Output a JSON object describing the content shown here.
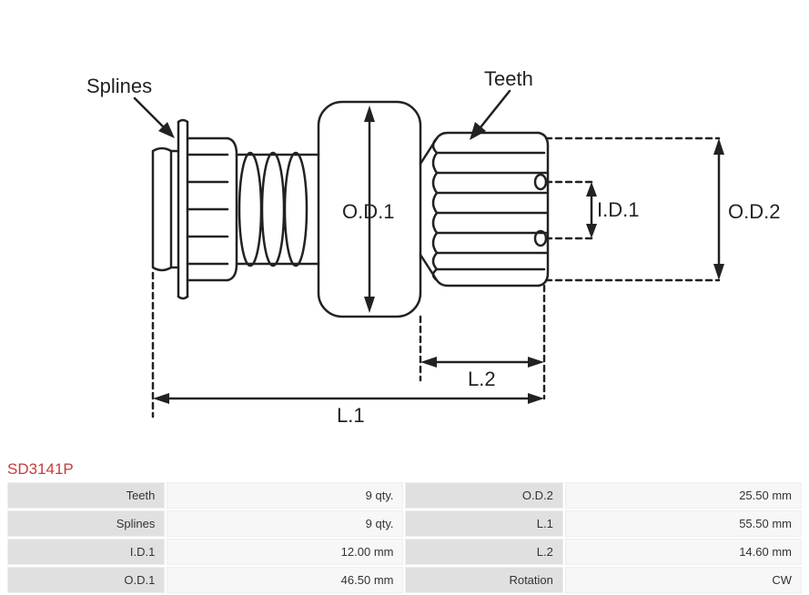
{
  "diagram": {
    "labels": {
      "splines": "Splines",
      "teeth": "Teeth",
      "od1": "O.D.1",
      "od2": "O.D.2",
      "id1": "I.D.1",
      "l1": "L.1",
      "l2": "L.2"
    },
    "stroke_color": "#222222",
    "stroke_width": 2.5,
    "dash": "6,5",
    "label_fontsize": 22
  },
  "part_number": "SD3141P",
  "specs": {
    "rows": [
      {
        "label1": "Teeth",
        "value1": "9 qty.",
        "label2": "O.D.2",
        "value2": "25.50 mm"
      },
      {
        "label1": "Splines",
        "value1": "9 qty.",
        "label2": "L.1",
        "value2": "55.50 mm"
      },
      {
        "label1": "I.D.1",
        "value1": "12.00 mm",
        "label2": "L.2",
        "value2": "14.60 mm"
      },
      {
        "label1": "O.D.1",
        "value1": "46.50 mm",
        "label2": "Rotation",
        "value2": "CW"
      }
    ]
  },
  "colors": {
    "part_number": "#c63a3a",
    "table_label_bg": "#e0e0e0",
    "table_value_bg": "#f7f7f7"
  }
}
